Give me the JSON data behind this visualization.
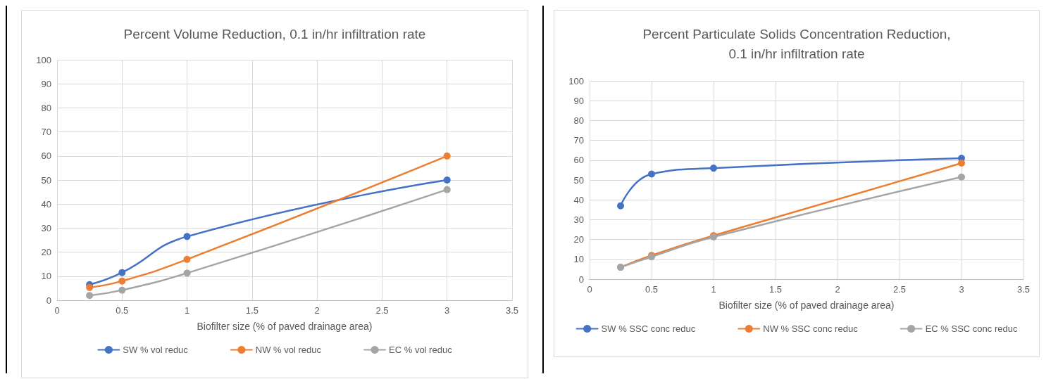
{
  "chart_data": [
    {
      "type": "line",
      "title": "Percent Volume Reduction, 0.1 in/hr infiltration rate",
      "xlabel": "Biofilter size (% of paved drainage area)",
      "x": [
        0.25,
        0.5,
        1,
        3
      ],
      "xlim": [
        0,
        3.5
      ],
      "xticks": [
        0,
        0.5,
        1,
        1.5,
        2,
        2.5,
        3,
        3.5
      ],
      "ylim": [
        0,
        100
      ],
      "yticks": [
        0,
        10,
        20,
        30,
        40,
        50,
        60,
        70,
        80,
        90,
        100
      ],
      "grid": true,
      "legend": "bottom",
      "marker": "circle",
      "series": [
        {
          "name": "SW % vol reduc",
          "color": "#4472c4",
          "values": [
            6.5,
            11.5,
            26.5,
            50
          ]
        },
        {
          "name": "NW % vol reduc",
          "color": "#ed7d31",
          "values": [
            5.3,
            8,
            17,
            60
          ]
        },
        {
          "name": "EC % vol reduc",
          "color": "#a5a5a5",
          "values": [
            2,
            4.2,
            11.3,
            46
          ]
        }
      ]
    },
    {
      "type": "line",
      "title": "Percent Particulate Solids Concentration Reduction,\n0.1 in/hr infiltration rate",
      "xlabel": "Biofilter size (% of paved drainage area)",
      "x": [
        0.25,
        0.5,
        1,
        3
      ],
      "xlim": [
        0,
        3.5
      ],
      "xticks": [
        0,
        0.5,
        1,
        1.5,
        2,
        2.5,
        3,
        3.5
      ],
      "ylim": [
        0,
        100
      ],
      "yticks": [
        0,
        10,
        20,
        30,
        40,
        50,
        60,
        70,
        80,
        90,
        100
      ],
      "grid": true,
      "legend": "bottom",
      "marker": "circle",
      "series": [
        {
          "name": "SW % SSC conc reduc",
          "color": "#4472c4",
          "values": [
            37,
            53,
            56,
            61
          ]
        },
        {
          "name": "NW % SSC conc reduc",
          "color": "#ed7d31",
          "values": [
            6,
            12,
            22,
            58.5
          ]
        },
        {
          "name": "EC % SSC conc reduc",
          "color": "#a5a5a5",
          "values": [
            6,
            11.3,
            21.3,
            51.5
          ]
        }
      ]
    }
  ]
}
